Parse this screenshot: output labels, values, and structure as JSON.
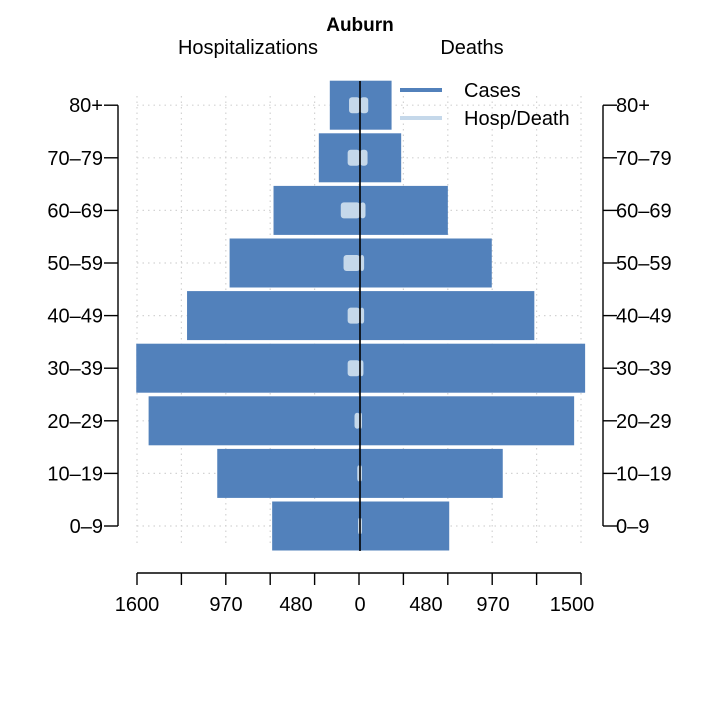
{
  "chart_data": {
    "type": "bar",
    "orientation": "horizontal-population-pyramid",
    "title": "Auburn",
    "left_label": "Hospitalizations",
    "right_label": "Deaths",
    "categories": [
      "0–9",
      "10–19",
      "20–29",
      "30–39",
      "40–49",
      "50–59",
      "60–69",
      "70–79",
      "80+"
    ],
    "x_tick_labels": [
      "1600",
      "970",
      "480",
      "0",
      "480",
      "970",
      "1500"
    ],
    "xlim": [
      -1610,
      1610
    ],
    "series": [
      {
        "name": "Cases",
        "side": "left",
        "values": [
          640,
          1040,
          1540,
          1630,
          1260,
          950,
          630,
          300,
          220
        ]
      },
      {
        "name": "Cases",
        "side": "right",
        "values": [
          650,
          1040,
          1560,
          1640,
          1270,
          960,
          640,
          300,
          230
        ]
      },
      {
        "name": "Hosp/Death",
        "side": "left",
        "values": [
          10,
          20,
          40,
          90,
          90,
          120,
          140,
          90,
          80
        ]
      },
      {
        "name": "Hosp/Death",
        "side": "right",
        "values": [
          5,
          5,
          10,
          25,
          30,
          30,
          40,
          55,
          60
        ]
      }
    ],
    "legend": {
      "position": "top-right",
      "entries": [
        {
          "label": "Cases",
          "color": "#5281bb"
        },
        {
          "label": "Hosp/Death",
          "color": "#c5d8ea"
        }
      ]
    },
    "grid": true,
    "colors": {
      "cases": "#5281bb",
      "hosp_death": "#c5d8ea",
      "grid": "#d3d3d3"
    }
  }
}
